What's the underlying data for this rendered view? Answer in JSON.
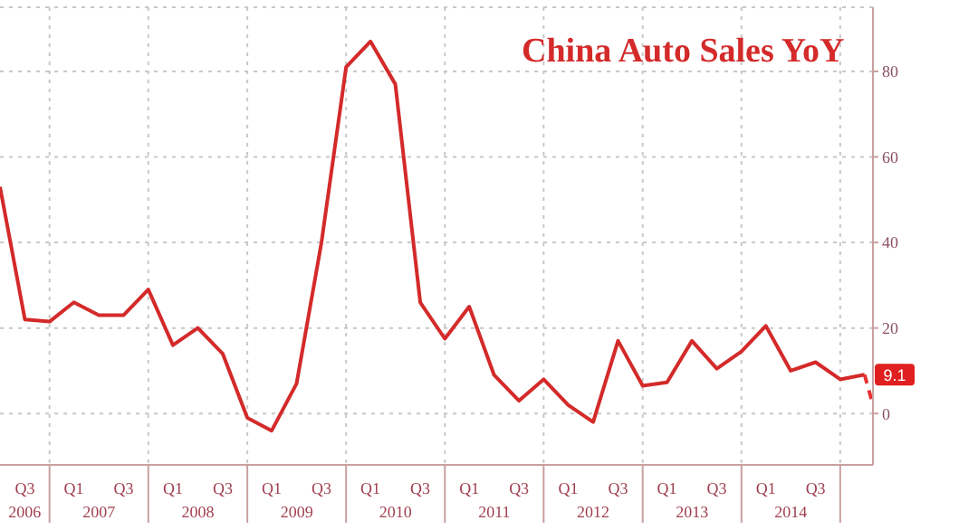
{
  "chart_data": {
    "type": "line",
    "title": "China Auto Sales YoY",
    "x": [
      "2006-06",
      "2006-09",
      "2006-12",
      "2007-03",
      "2007-06",
      "2007-09",
      "2007-12",
      "2008-03",
      "2008-06",
      "2008-09",
      "2008-12",
      "2009-03",
      "2009-06",
      "2009-09",
      "2009-12",
      "2010-03",
      "2010-06",
      "2010-09",
      "2010-12",
      "2011-03",
      "2011-06",
      "2011-09",
      "2011-12",
      "2012-03",
      "2012-06",
      "2012-09",
      "2012-12",
      "2013-03",
      "2013-06",
      "2013-09",
      "2013-12",
      "2014-03",
      "2014-06",
      "2014-09",
      "2014-12",
      "2015-03"
    ],
    "series": [
      {
        "color": "#d42a2a",
        "line_style": "solid",
        "values": [
          53,
          22,
          21.5,
          26,
          23,
          23,
          29,
          16,
          20,
          14,
          -1,
          -4,
          7,
          40,
          81,
          87,
          77,
          26,
          17.5,
          25,
          9,
          3,
          8,
          2,
          -2,
          17,
          6.5,
          7.3,
          17,
          10.5,
          14.5,
          20.5,
          10,
          12,
          8,
          9.1
        ]
      },
      {
        "color": "#e83030",
        "line_style": "dashed",
        "x": [
          "2015-03",
          "2015-04"
        ],
        "values": [
          9.1,
          2
        ]
      }
    ],
    "annotations": [
      {
        "text": "9.1",
        "x": "2015-03",
        "y": 9.1
      },
      "2006",
      "2007",
      "2008",
      "2009",
      "2010",
      "2011",
      "2012",
      "2013",
      "2014"
    ],
    "xlim": [
      "2006-06",
      "2015-04"
    ],
    "xticks": [
      {
        "value": "2006-09",
        "label": "Q3"
      },
      {
        "value": "2006-12",
        "label": null
      },
      {
        "value": "2007-03",
        "label": "Q1"
      },
      {
        "value": "2007-09",
        "label": "Q3"
      },
      {
        "value": "2007-12",
        "label": null
      },
      {
        "value": "2008-03",
        "label": "Q1"
      },
      {
        "value": "2008-09",
        "label": "Q3"
      },
      {
        "value": "2008-12",
        "label": null
      },
      {
        "value": "2009-03",
        "label": "Q1"
      },
      {
        "value": "2009-09",
        "label": "Q3"
      },
      {
        "value": "2009-12",
        "label": null
      },
      {
        "value": "2010-03",
        "label": "Q1"
      },
      {
        "value": "2010-09",
        "label": "Q3"
      },
      {
        "value": "2010-12",
        "label": null
      },
      {
        "value": "2011-03",
        "label": "Q1"
      },
      {
        "value": "2011-09",
        "label": "Q3"
      },
      {
        "value": "2011-12",
        "label": null
      },
      {
        "value": "2012-03",
        "label": "Q1"
      },
      {
        "value": "2012-09",
        "label": "Q3"
      },
      {
        "value": "2012-12",
        "label": null
      },
      {
        "value": "2013-03",
        "label": "Q1"
      },
      {
        "value": "2013-09",
        "label": "Q3"
      },
      {
        "value": "2013-12",
        "label": null
      },
      {
        "value": "2014-03",
        "label": "Q1"
      },
      {
        "value": "2014-09",
        "label": "Q3"
      },
      {
        "value": "2014-12",
        "label": null
      }
    ],
    "ylim": [
      -12,
      95
    ],
    "yticks": [
      0,
      20,
      40,
      60,
      80
    ],
    "grid": true,
    "marker": "none"
  }
}
